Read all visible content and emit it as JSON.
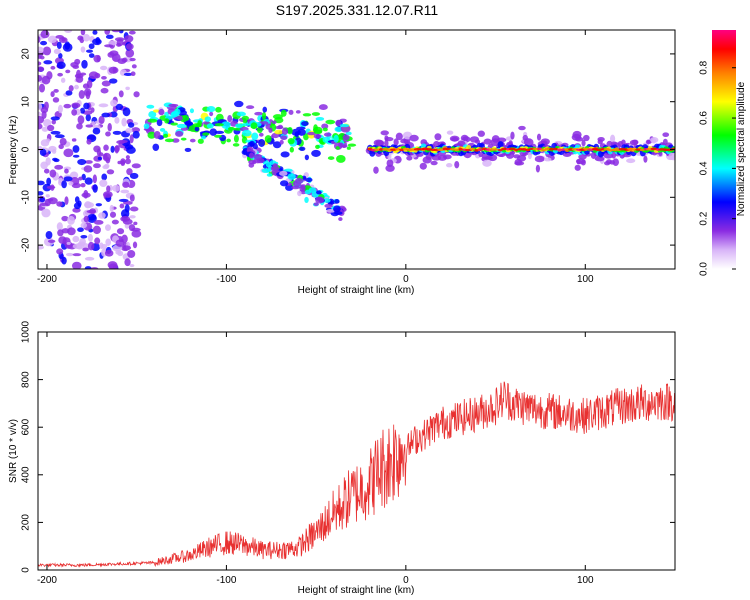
{
  "title": "S197.2025.331.12.07.R11",
  "chart_data": [
    {
      "type": "heatmap",
      "name": "spectrogram",
      "xlabel": "Height of straight line (km)",
      "ylabel": "Frequency (Hz)",
      "xlim": [
        -205,
        150
      ],
      "ylim": [
        -25,
        25
      ],
      "xticks": [
        -200,
        -100,
        0,
        100
      ],
      "yticks": [
        -20,
        -10,
        0,
        10,
        20
      ],
      "colorbar": {
        "label": "Normalized spectral amplitude",
        "range": [
          0,
          0.95
        ],
        "ticks": [
          "0.0",
          "0.2",
          "0.4",
          "0.6",
          "0.8"
        ],
        "colors": [
          "#ffffff",
          "#d8b4f8",
          "#8a2be2",
          "#0000ff",
          "#00ffff",
          "#00ff00",
          "#ffff00",
          "#ff8000",
          "#ff0000",
          "#ff0080"
        ]
      },
      "features": [
        {
          "label": "scatter",
          "x": [
            -205,
            -150
          ],
          "freq": [
            -25,
            25
          ],
          "amplitude": 0.25
        },
        {
          "label": "upper band",
          "x": [
            -145,
            -30
          ],
          "freq": [
            4,
            8
          ],
          "amplitude": 0.5
        },
        {
          "label": "lower branch",
          "x": [
            -90,
            -35
          ],
          "freq": [
            -13,
            0
          ],
          "amplitude": 0.4
        },
        {
          "label": "main line",
          "x": [
            -20,
            150
          ],
          "freq": [
            0,
            0
          ],
          "amplitude": 0.9
        }
      ]
    },
    {
      "type": "line",
      "name": "snr",
      "xlabel": "Height of straight line (km)",
      "ylabel": "SNR (10 * v/v)",
      "xlim": [
        -205,
        150
      ],
      "ylim": [
        0,
        1000
      ],
      "xticks": [
        -200,
        -100,
        0,
        100
      ],
      "yticks": [
        0,
        200,
        400,
        600,
        800,
        1000
      ],
      "color": "#e83030",
      "series": [
        {
          "name": "SNR",
          "x": [
            -205,
            -180,
            -160,
            -140,
            -120,
            -110,
            -100,
            -90,
            -80,
            -70,
            -60,
            -50,
            -40,
            -30,
            -20,
            -15,
            -10,
            -5,
            0,
            5,
            10,
            15,
            20,
            30,
            40,
            50,
            55,
            60,
            70,
            80,
            90,
            100,
            110,
            120,
            130,
            140,
            150
          ],
          "y": [
            20,
            20,
            25,
            30,
            60,
            90,
            110,
            100,
            80,
            80,
            90,
            150,
            230,
            300,
            350,
            400,
            430,
            470,
            500,
            540,
            560,
            590,
            610,
            630,
            650,
            680,
            720,
            690,
            670,
            660,
            650,
            640,
            660,
            680,
            690,
            700,
            700
          ]
        }
      ]
    }
  ]
}
